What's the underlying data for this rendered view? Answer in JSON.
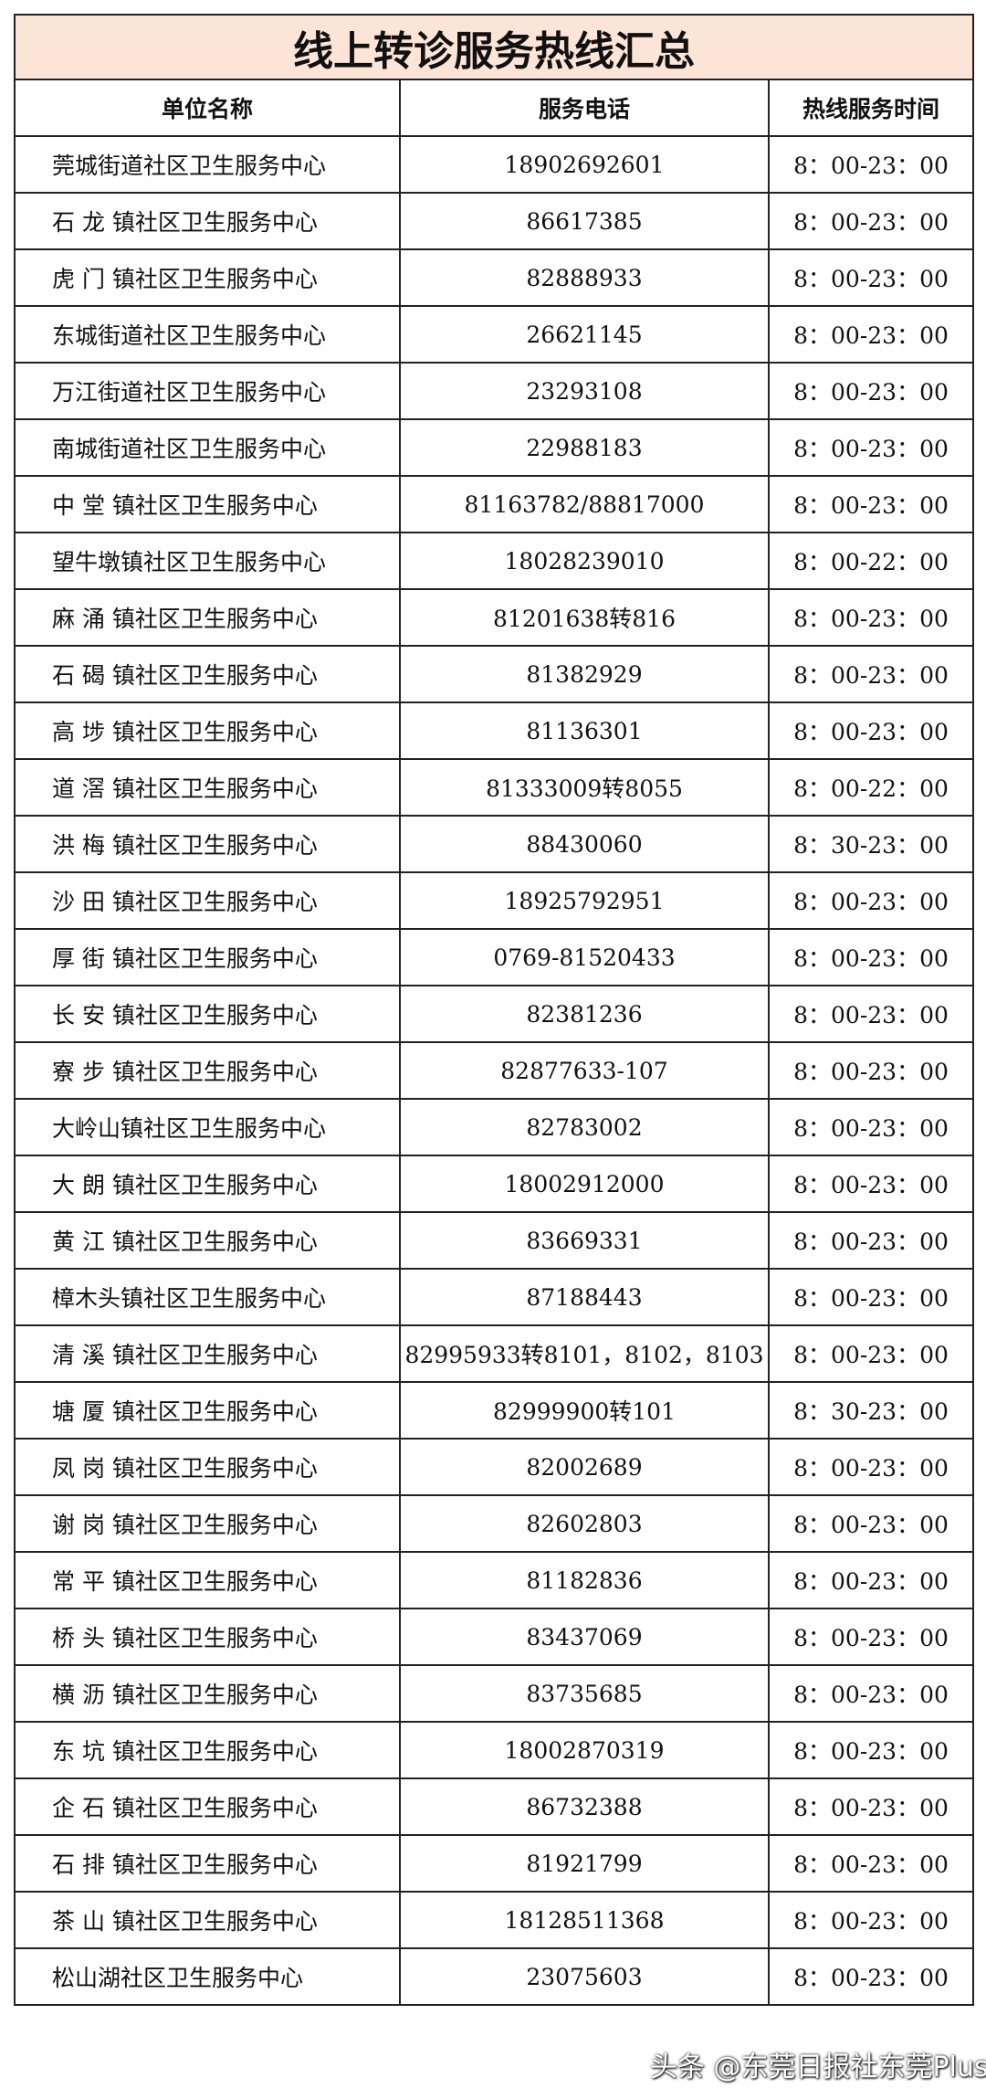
{
  "title": "线上转诊服务热线汇总",
  "table": {
    "header": [
      "单位名称",
      "服务电话",
      "热线服务时间"
    ],
    "rows": [
      [
        "莞城街道社区卫生服务中心",
        "18902692601",
        "8：00-23：00"
      ],
      [
        "石 龙 镇社区卫生服务中心",
        "86617385",
        "8：00-23：00"
      ],
      [
        "虎 门 镇社区卫生服务中心",
        "82888933",
        "8：00-23：00"
      ],
      [
        "东城街道社区卫生服务中心",
        "26621145",
        "8：00-23：00"
      ],
      [
        "万江街道社区卫生服务中心",
        "23293108",
        "8：00-23：00"
      ],
      [
        "南城街道社区卫生服务中心",
        "22988183",
        "8：00-23：00"
      ],
      [
        "中 堂 镇社区卫生服务中心",
        "81163782/88817000",
        "8：00-23：00"
      ],
      [
        "望牛墩镇社区卫生服务中心",
        "18028239010",
        "8：00-22：00"
      ],
      [
        "麻 涌 镇社区卫生服务中心",
        "81201638转816",
        "8：00-23：00"
      ],
      [
        "石 碣 镇社区卫生服务中心",
        "81382929",
        "8：00-23：00"
      ],
      [
        "高 埗 镇社区卫生服务中心",
        "81136301",
        "8：00-23：00"
      ],
      [
        "道 滘 镇社区卫生服务中心",
        "81333009转8055",
        "8：00-22：00"
      ],
      [
        "洪 梅 镇社区卫生服务中心",
        "88430060",
        "8：30-23：00"
      ],
      [
        "沙 田 镇社区卫生服务中心",
        "18925792951",
        "8：00-23：00"
      ],
      [
        "厚 街 镇社区卫生服务中心",
        "0769-81520433",
        "8：00-23：00"
      ],
      [
        "长 安 镇社区卫生服务中心",
        "82381236",
        "8：00-23：00"
      ],
      [
        "寮 步 镇社区卫生服务中心",
        "82877633-107",
        "8：00-23：00"
      ],
      [
        "大岭山镇社区卫生服务中心",
        "82783002",
        "8：00-23：00"
      ],
      [
        "大 朗 镇社区卫生服务中心",
        "18002912000",
        "8：00-23：00"
      ],
      [
        "黄 江 镇社区卫生服务中心",
        "83669331",
        "8：00-23：00"
      ],
      [
        "樟木头镇社区卫生服务中心",
        "87188443",
        "8：00-23：00"
      ],
      [
        "清 溪 镇社区卫生服务中心",
        "82995933转8101，8102，8103",
        "8：00-23：00"
      ],
      [
        "塘 厦 镇社区卫生服务中心",
        "82999900转101",
        "8：30-23：00"
      ],
      [
        "凤 岗 镇社区卫生服务中心",
        "82002689",
        "8：00-23：00"
      ],
      [
        "谢 岗 镇社区卫生服务中心",
        "82602803",
        "8：00-23：00"
      ],
      [
        "常 平 镇社区卫生服务中心",
        "81182836",
        "8：00-23：00"
      ],
      [
        "桥 头 镇社区卫生服务中心",
        "83437069",
        "8：00-23：00"
      ],
      [
        "横 沥 镇社区卫生服务中心",
        "83735685",
        "8：00-23：00"
      ],
      [
        "东 坑 镇社区卫生服务中心",
        "18002870319",
        "8：00-23：00"
      ],
      [
        "企 石 镇社区卫生服务中心",
        "86732388",
        "8：00-23：00"
      ],
      [
        "石 排 镇社区卫生服务中心",
        "81921799",
        "8：00-23：00"
      ],
      [
        "茶 山 镇社区卫生服务中心",
        "18128511368",
        "8：00-23：00"
      ],
      [
        "松山湖社区卫生服务中心",
        "23075603",
        "8：00-23：00"
      ]
    ]
  },
  "watermark": "头条 @东莞日报社东莞Plus"
}
